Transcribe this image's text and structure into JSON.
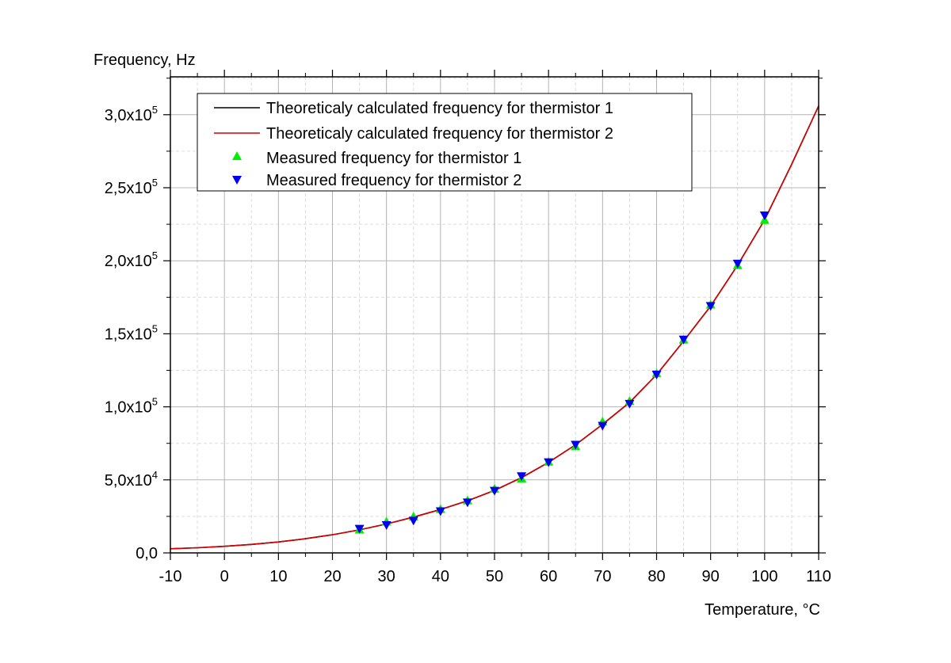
{
  "chart_data": {
    "type": "line",
    "xlabel": "Temperature, °C",
    "ylabel": "Frequency, Hz",
    "xlim": [
      -10,
      110
    ],
    "ylim": [
      0,
      320000
    ],
    "x_ticks": [
      -10,
      0,
      10,
      20,
      30,
      40,
      50,
      60,
      70,
      80,
      90,
      100,
      110
    ],
    "y_ticks": [
      {
        "value": 0,
        "mantissa": "0,0",
        "exp": ""
      },
      {
        "value": 50000,
        "mantissa": "5,0x10",
        "exp": "4"
      },
      {
        "value": 100000,
        "mantissa": "1,0x10",
        "exp": "5"
      },
      {
        "value": 150000,
        "mantissa": "1,5x10",
        "exp": "5"
      },
      {
        "value": 200000,
        "mantissa": "2,0x10",
        "exp": "5"
      },
      {
        "value": 250000,
        "mantissa": "2,5x10",
        "exp": "5"
      },
      {
        "value": 300000,
        "mantissa": "3,0x10",
        "exp": "5"
      }
    ],
    "grid": true,
    "legend_position": "top-left",
    "series": [
      {
        "name": "Theoreticaly calculated frequency for thermistor 1",
        "kind": "line",
        "color": "#000000",
        "x": [
          -10,
          -5,
          0,
          5,
          10,
          15,
          20,
          25,
          30,
          35,
          40,
          45,
          50,
          55,
          60,
          65,
          70,
          75,
          80,
          85,
          90,
          95,
          100,
          105,
          110
        ],
        "y": [
          2800,
          3500,
          4500,
          5800,
          7500,
          9700,
          12400,
          15800,
          19800,
          24500,
          29700,
          35700,
          42800,
          51500,
          62000,
          74000,
          88000,
          103000,
          122000,
          145000,
          169000,
          197000,
          228000,
          266000,
          306000
        ]
      },
      {
        "name": "Theoreticaly calculated frequency for thermistor 2",
        "kind": "line",
        "color": "#d40000",
        "x": [
          -10,
          -5,
          0,
          5,
          10,
          15,
          20,
          25,
          30,
          35,
          40,
          45,
          50,
          55,
          60,
          65,
          70,
          75,
          80,
          85,
          90,
          95,
          100,
          105,
          110
        ],
        "y": [
          2800,
          3500,
          4500,
          5800,
          7500,
          9700,
          12400,
          15800,
          19800,
          24500,
          29700,
          35700,
          42800,
          51500,
          62000,
          74000,
          88000,
          103000,
          122000,
          145000,
          169000,
          197000,
          228000,
          266000,
          306000
        ]
      },
      {
        "name": "Measured frequency for thermistor 1",
        "kind": "marker-up",
        "color": "#00ee00",
        "x": [
          25,
          30,
          35,
          40,
          45,
          50,
          55,
          60,
          65,
          70,
          75,
          80,
          85,
          90,
          95,
          100
        ],
        "y": [
          16000,
          21500,
          25000,
          30000,
          36000,
          44000,
          51000,
          62500,
          73000,
          90000,
          104000,
          123000,
          146000,
          170000,
          197000,
          228000
        ]
      },
      {
        "name": "Measured frequency for thermistor 2",
        "kind": "marker-down",
        "color": "#0000ee",
        "x": [
          25,
          30,
          35,
          40,
          45,
          50,
          55,
          60,
          65,
          70,
          75,
          80,
          85,
          90,
          95,
          100
        ],
        "y": [
          16500,
          19000,
          22000,
          28500,
          34500,
          42500,
          52500,
          62000,
          74000,
          87000,
          102000,
          122000,
          146000,
          169000,
          198000,
          231000
        ]
      }
    ]
  }
}
